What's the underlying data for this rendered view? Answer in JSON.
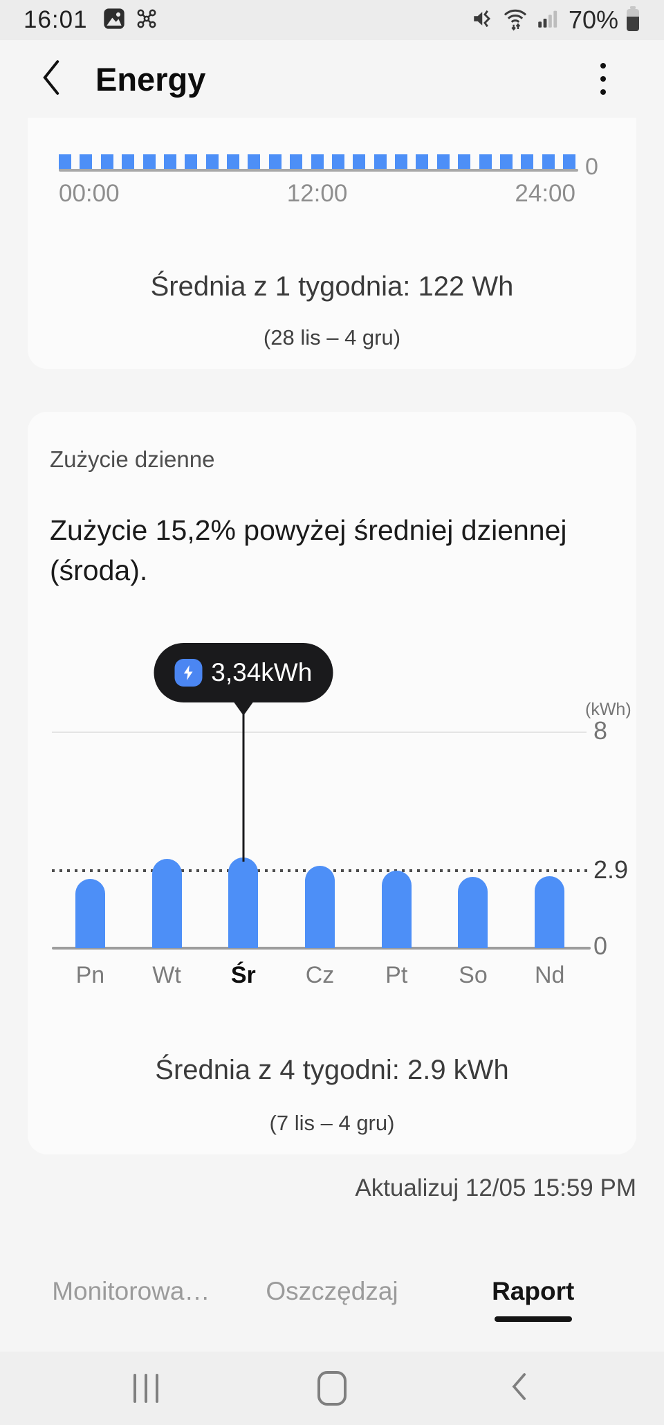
{
  "status_bar": {
    "time": "16:01",
    "battery_percent": "70%"
  },
  "header": {
    "title": "Energy"
  },
  "cards": {
    "hourly": {
      "average": "Średnia z 1 tygodnia: 122 Wh",
      "period": "(28 lis – 4 gru)"
    },
    "daily": {
      "title": "Zużycie dzienne",
      "description_line1": "Zużycie 15,2% powyżej średniej dziennej",
      "description_line2": "(środa).",
      "average": "Średnia z 4 tygodni: 2.9 kWh",
      "period": "(7 lis – 4 gru)"
    }
  },
  "update_label": "Aktualizuj 12/05 15:59 PM",
  "tabs": [
    {
      "label": "Monitorowa…",
      "active": false
    },
    {
      "label": "Oszczędzaj",
      "active": false
    },
    {
      "label": "Raport",
      "active": true
    }
  ],
  "colors": {
    "bar_blue": "#4d8ff7",
    "tooltip_bg": "#1a1a1c",
    "tooltip_badge_blue": "#4b86f2"
  },
  "chart_data": [
    {
      "id": "hourly_usage",
      "type": "bar",
      "bar_count": 25,
      "note": "uniform small bars, top of chart scrolled out of view",
      "x_tick_labels": [
        "00:00",
        "12:00",
        "24:00"
      ],
      "y_tick_labels": [
        "0"
      ]
    },
    {
      "id": "daily_usage",
      "type": "bar",
      "categories": [
        "Pn",
        "Wt",
        "Śr",
        "Cz",
        "Pt",
        "So",
        "Nd"
      ],
      "values": [
        2.55,
        3.3,
        3.34,
        3.05,
        2.86,
        2.62,
        2.66
      ],
      "selected_index": 2,
      "tooltip_label": "3,34kWh",
      "unit_label": "(kWh)",
      "ylim": [
        0,
        8
      ],
      "y_tick_top": "8",
      "y_tick_zero": "0",
      "average_line_value": 2.9,
      "average_label": "2.9",
      "grid": "top gridline at 8, dotted average line at 2.9, solid baseline at 0",
      "legend": "none"
    }
  ]
}
